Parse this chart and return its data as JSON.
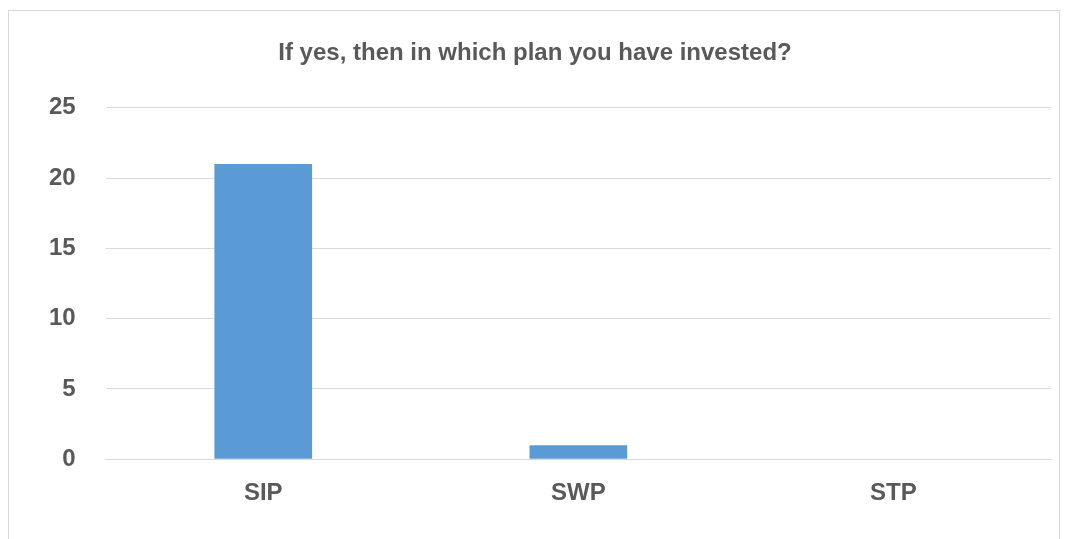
{
  "chart_data": {
    "type": "bar",
    "title": "If yes, then in which plan you have invested?",
    "categories": [
      "SIP",
      "SWP",
      "STP"
    ],
    "values": [
      21,
      1,
      0
    ],
    "color": "#5b9bd5",
    "ylim": [
      0,
      25
    ],
    "yticks": [
      0,
      5,
      10,
      15,
      20,
      25
    ],
    "grid": "y"
  }
}
